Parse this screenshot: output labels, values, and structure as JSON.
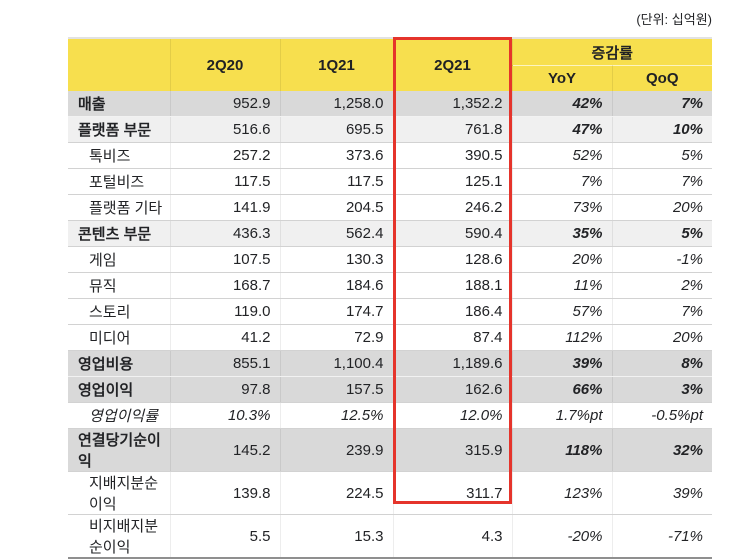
{
  "unit_label": "(단위: 십억원)",
  "colors": {
    "header_yellow": "#F7DF4E",
    "row_dark_gray": "#D9D9D9",
    "row_light_gray": "#F0F0F0",
    "highlight_red": "#E5342B"
  },
  "table": {
    "header": {
      "quarters": [
        "2Q20",
        "1Q21",
        "2Q21"
      ],
      "change_group": "증감률",
      "yoy": "YoY",
      "qoq": "QoQ",
      "highlighted_quarter": "2Q21"
    },
    "rows": [
      {
        "label": "매출",
        "values": [
          "952.9",
          "1,258.0",
          "1,352.2"
        ],
        "yoy": "42%",
        "qoq": "7%"
      },
      {
        "label": "플랫폼 부문",
        "values": [
          "516.6",
          "695.5",
          "761.8"
        ],
        "yoy": "47%",
        "qoq": "10%"
      },
      {
        "label": "톡비즈",
        "values": [
          "257.2",
          "373.6",
          "390.5"
        ],
        "yoy": "52%",
        "qoq": "5%"
      },
      {
        "label": "포털비즈",
        "values": [
          "117.5",
          "117.5",
          "125.1"
        ],
        "yoy": "7%",
        "qoq": "7%"
      },
      {
        "label": "플랫폼 기타",
        "values": [
          "141.9",
          "204.5",
          "246.2"
        ],
        "yoy": "73%",
        "qoq": "20%"
      },
      {
        "label": "콘텐츠 부문",
        "values": [
          "436.3",
          "562.4",
          "590.4"
        ],
        "yoy": "35%",
        "qoq": "5%"
      },
      {
        "label": "게임",
        "values": [
          "107.5",
          "130.3",
          "128.6"
        ],
        "yoy": "20%",
        "qoq": "-1%"
      },
      {
        "label": "뮤직",
        "values": [
          "168.7",
          "184.6",
          "188.1"
        ],
        "yoy": "11%",
        "qoq": "2%"
      },
      {
        "label": "스토리",
        "values": [
          "119.0",
          "174.7",
          "186.4"
        ],
        "yoy": "57%",
        "qoq": "7%"
      },
      {
        "label": "미디어",
        "values": [
          "41.2",
          "72.9",
          "87.4"
        ],
        "yoy": "112%",
        "qoq": "20%"
      },
      {
        "label": "영업비용",
        "values": [
          "855.1",
          "1,100.4",
          "1,189.6"
        ],
        "yoy": "39%",
        "qoq": "8%"
      },
      {
        "label": "영업이익",
        "values": [
          "97.8",
          "157.5",
          "162.6"
        ],
        "yoy": "66%",
        "qoq": "3%"
      },
      {
        "label": "영업이익률",
        "values": [
          "10.3%",
          "12.5%",
          "12.0%"
        ],
        "yoy": "1.7%pt",
        "qoq": "-0.5%pt"
      },
      {
        "label": "연결당기순이익",
        "values": [
          "145.2",
          "239.9",
          "315.9"
        ],
        "yoy": "118%",
        "qoq": "32%"
      },
      {
        "label": "지배지분순이익",
        "values": [
          "139.8",
          "224.5",
          "311.7"
        ],
        "yoy": "123%",
        "qoq": "39%"
      },
      {
        "label": "비지배지분순이익",
        "values": [
          "5.5",
          "15.3",
          "4.3"
        ],
        "yoy": "-20%",
        "qoq": "-71%"
      }
    ]
  }
}
